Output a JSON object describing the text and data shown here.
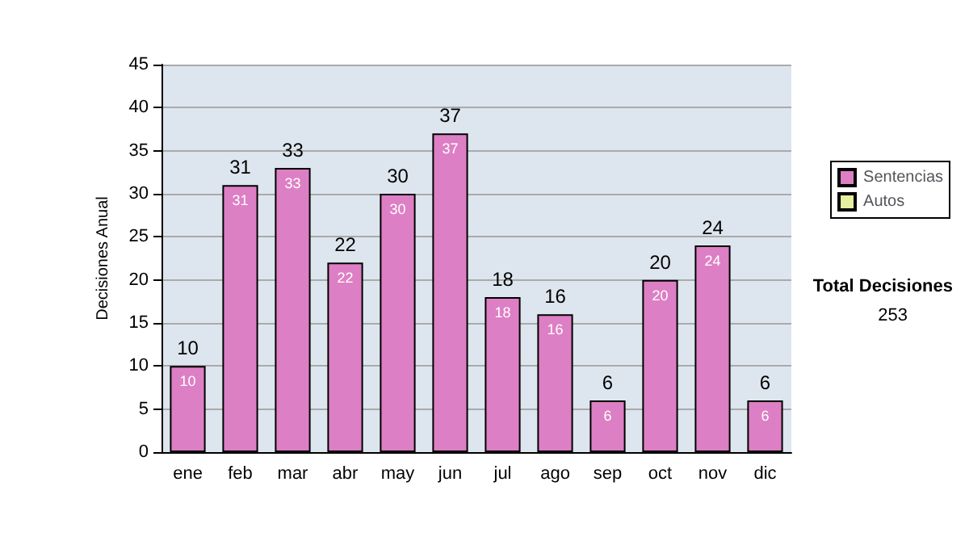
{
  "chart_data": {
    "type": "bar",
    "ylabel": "Decisiones Anual",
    "categories": [
      "ene",
      "feb",
      "mar",
      "abr",
      "may",
      "jun",
      "jul",
      "ago",
      "sep",
      "oct",
      "nov",
      "dic"
    ],
    "series": [
      {
        "name": "Sentencias",
        "color": "#dd7fc4",
        "values": [
          10,
          31,
          33,
          22,
          30,
          37,
          18,
          16,
          6,
          20,
          24,
          6
        ],
        "value_labels": [
          "10",
          "31",
          "33",
          "22",
          "30",
          "37",
          "18",
          "16",
          "6",
          "20",
          "24",
          "6"
        ]
      },
      {
        "name": "Autos",
        "color": "#e6eea0",
        "values": [
          0,
          0,
          0,
          0,
          0,
          0,
          0,
          0,
          0,
          0,
          0,
          0
        ]
      }
    ],
    "stacked": true,
    "totals": [
      "10",
      "31",
      "33",
      "22",
      "30",
      "37",
      "18",
      "16",
      "6",
      "20",
      "24",
      "6"
    ],
    "ylim": [
      0,
      45
    ],
    "yticks": [
      0,
      5,
      10,
      15,
      20,
      25,
      30,
      35,
      40,
      45
    ],
    "grid": "y",
    "legend": "right",
    "annotations": [
      "Total Decisiones",
      "253"
    ]
  }
}
